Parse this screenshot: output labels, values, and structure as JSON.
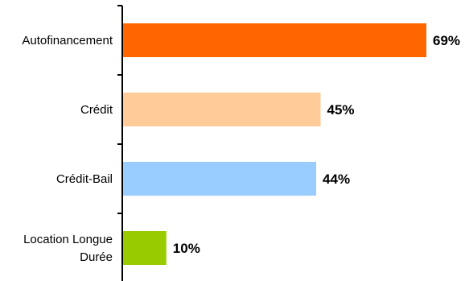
{
  "chart_data": {
    "type": "bar",
    "orientation": "horizontal",
    "title": "",
    "xlabel": "",
    "ylabel": "",
    "xlim": [
      0,
      70
    ],
    "grid": false,
    "legend": "none",
    "categories": [
      [
        "Autofinancement"
      ],
      [
        "Crédit"
      ],
      [
        "Crédit-Bail"
      ],
      [
        "Location Longue",
        "Durée"
      ]
    ],
    "values": [
      69,
      45,
      44,
      10
    ],
    "value_labels": [
      "69%",
      "45%",
      "44%",
      "10%"
    ],
    "colors": [
      "#FF6600",
      "#FFCC99",
      "#99CCFF",
      "#99CC00"
    ]
  }
}
